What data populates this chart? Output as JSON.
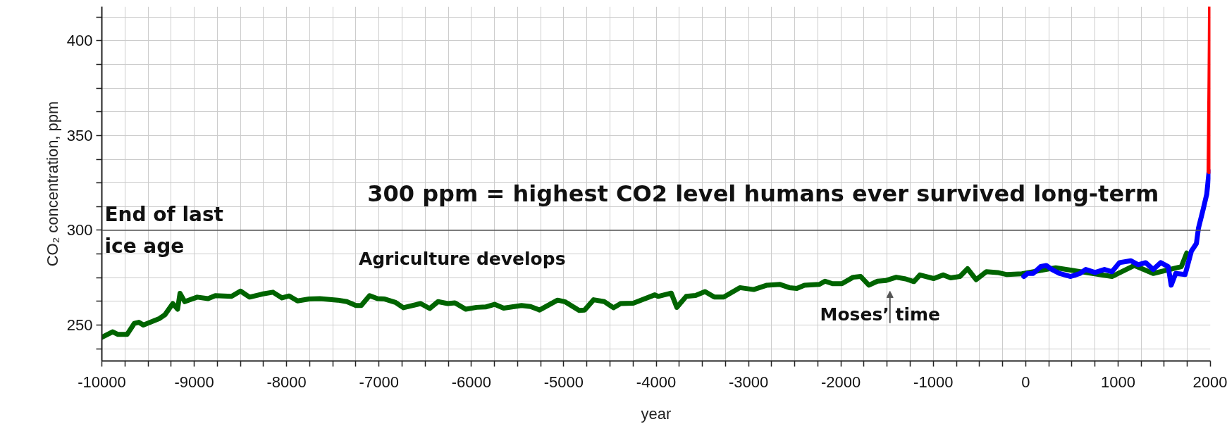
{
  "chart_data": {
    "type": "line",
    "xlabel": "year",
    "ylabel": "CO₂ concentration, ppm",
    "xlim": [
      -10000,
      2000
    ],
    "ylim": [
      231,
      418
    ],
    "xticks": [
      -10000,
      {
        "value": -9750,
        "label": null
      },
      {
        "value": -9500,
        "label": null
      },
      {
        "value": -9250,
        "label": null
      },
      -9000,
      {
        "value": -8750,
        "label": null
      },
      {
        "value": -8500,
        "label": null
      },
      {
        "value": -8250,
        "label": null
      },
      -8000,
      {
        "value": -7750,
        "label": null
      },
      {
        "value": -7500,
        "label": null
      },
      {
        "value": -7250,
        "label": null
      },
      -7000,
      {
        "value": -6750,
        "label": null
      },
      {
        "value": -6500,
        "label": null
      },
      {
        "value": -6250,
        "label": null
      },
      -6000,
      {
        "value": -5750,
        "label": null
      },
      {
        "value": -5500,
        "label": null
      },
      {
        "value": -5250,
        "label": null
      },
      -5000,
      {
        "value": -4750,
        "label": null
      },
      {
        "value": -4500,
        "label": null
      },
      {
        "value": -4250,
        "label": null
      },
      -4000,
      {
        "value": -3750,
        "label": null
      },
      {
        "value": -3500,
        "label": null
      },
      {
        "value": -3250,
        "label": null
      },
      -3000,
      {
        "value": -2750,
        "label": null
      },
      {
        "value": -2500,
        "label": null
      },
      {
        "value": -2250,
        "label": null
      },
      -2000,
      {
        "value": -1750,
        "label": null
      },
      {
        "value": -1500,
        "label": null
      },
      {
        "value": -1250,
        "label": null
      },
      -1000,
      {
        "value": -750,
        "label": null
      },
      {
        "value": -500,
        "label": null
      },
      {
        "value": -250,
        "label": null
      },
      0,
      {
        "value": 250,
        "label": null
      },
      {
        "value": 500,
        "label": null
      },
      {
        "value": 750,
        "label": null
      },
      1000,
      {
        "value": 1250,
        "label": null
      },
      {
        "value": 1500,
        "label": null
      },
      {
        "value": 1750,
        "label": null
      },
      2000
    ],
    "yticks": [
      {
        "value": 237.5,
        "label": null
      },
      250,
      {
        "value": 262.5,
        "label": null
      },
      {
        "value": 275,
        "label": null
      },
      {
        "value": 287.5,
        "label": null
      },
      300,
      {
        "value": 312.5,
        "label": null
      },
      {
        "value": 325,
        "label": null
      },
      {
        "value": 337.5,
        "label": null
      },
      350,
      {
        "value": 362.5,
        "label": null
      },
      {
        "value": 375,
        "label": null
      },
      {
        "value": 387.5,
        "label": null
      },
      400,
      {
        "value": 412.5,
        "label": null
      }
    ],
    "grid": true,
    "line_style": "solid",
    "marker": "none",
    "ref_lines": [
      {
        "axis": "y",
        "value": 300,
        "color": "#555555"
      }
    ],
    "annotations": [
      "300 ppm = highest CO2  level humans ever survived long-term",
      {
        "text": "End of last\nice age",
        "x": -9970,
        "y": 300
      },
      "Agriculture develops",
      "Moses’ time"
    ],
    "series": [
      {
        "color": "#006400",
        "x": [
          -10000,
          -9883,
          -9825,
          -9727,
          -9649,
          -9600,
          -9551,
          -9376,
          -9317,
          -9232,
          -9180,
          -9154,
          -9103,
          -8967,
          -8850,
          -8772,
          -8596,
          -8499,
          -8401,
          -8265,
          -8148,
          -8050,
          -7972,
          -7882,
          -7757,
          -7640,
          -7446,
          -7348,
          -7250,
          -7192,
          -7102,
          -7016,
          -6938,
          -6821,
          -6736,
          -6549,
          -6451,
          -6361,
          -6256,
          -6178,
          -6061,
          -5944,
          -5846,
          -5749,
          -5651,
          -5457,
          -5359,
          -5262,
          -5067,
          -4989,
          -4833,
          -4774,
          -4677,
          -4560,
          -4462,
          -4384,
          -4248,
          -4014,
          -3979,
          -3836,
          -3776,
          -3674,
          -3573,
          -3471,
          -3370,
          -3268,
          -3094,
          -2944,
          -2801,
          -2659,
          -2558,
          -2477,
          -2395,
          -2233,
          -2172,
          -2091,
          -1989,
          -1868,
          -1786,
          -1697,
          -1604,
          -1510,
          -1401,
          -1299,
          -1210,
          -1145,
          -995,
          -893,
          -812,
          -711,
          -629,
          -536,
          -426,
          -305,
          -203,
          -41,
          325,
          650,
          934,
          1177,
          1380,
          1685,
          1743
        ],
        "values": [
          243.5,
          246.4,
          245,
          245,
          250.8,
          251.4,
          250,
          253.4,
          255.4,
          261.3,
          258.3,
          266.7,
          262.3,
          264.7,
          263.9,
          265.5,
          265.1,
          267.9,
          264.7,
          266.3,
          267.3,
          264.3,
          265.3,
          262.7,
          263.7,
          263.9,
          263.1,
          262.3,
          260.3,
          260.3,
          265.5,
          263.9,
          263.7,
          261.9,
          259.1,
          261.3,
          258.7,
          262.3,
          261.3,
          261.7,
          258.3,
          259.3,
          259.5,
          260.9,
          258.9,
          260.3,
          259.7,
          257.9,
          263.1,
          262.3,
          257.7,
          257.9,
          263.3,
          262.3,
          259.1,
          261.3,
          261.5,
          265.9,
          265.1,
          266.8,
          259.3,
          265.1,
          265.6,
          267.6,
          264.7,
          264.7,
          269.7,
          268.7,
          271,
          271.4,
          269.7,
          269.3,
          271,
          271.4,
          273.1,
          271.8,
          271.8,
          275.2,
          275.6,
          271,
          273.1,
          273.5,
          275.2,
          274.3,
          272.9,
          276.4,
          274.5,
          276.4,
          274.9,
          275.6,
          279.7,
          273.9,
          278.1,
          277.7,
          276.6,
          277,
          280.2,
          277.7,
          275.6,
          281.4,
          277.2,
          280.8,
          288
        ]
      },
      {
        "color": "#0000ff",
        "x": [
          -20,
          20,
          81,
          162,
          223,
          284,
          365,
          487,
          589,
          650,
          751,
          853,
          934,
          1015,
          1137,
          1218,
          1299,
          1380,
          1462,
          1543,
          1575,
          1624,
          1726,
          1794,
          1848,
          1870,
          1921,
          1960,
          1985
        ],
        "values": [
          275.6,
          277.2,
          277.2,
          280.8,
          281.4,
          279.3,
          277.2,
          275.6,
          277.2,
          279.3,
          277.7,
          279.3,
          278.1,
          282.9,
          283.9,
          281.8,
          282.9,
          279.3,
          282.9,
          280.8,
          271,
          277.2,
          276.6,
          289,
          293,
          301,
          311,
          319,
          331
        ]
      },
      {
        "color": "#ff0000",
        "x": [
          1985,
          1990,
          1995,
          1998,
          2000
        ],
        "values": [
          331,
          355,
          380,
          400,
          418
        ]
      }
    ]
  }
}
